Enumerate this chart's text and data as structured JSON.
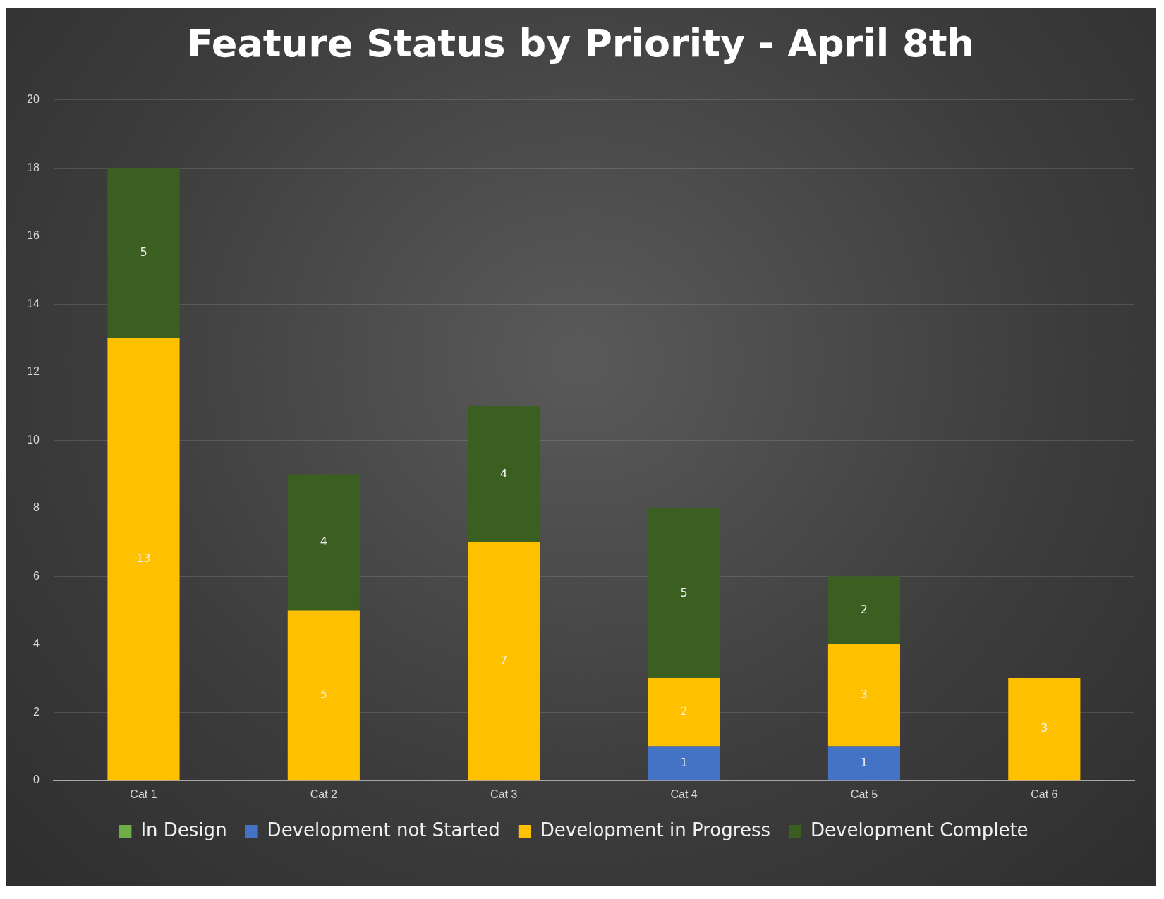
{
  "chart_data": {
    "type": "bar",
    "title": "Feature Status by Priority - April 8th",
    "categories": [
      "Cat 1",
      "Cat 2",
      "Cat 3",
      "Cat 4",
      "Cat 5",
      "Cat 6"
    ],
    "series": [
      {
        "name": "In Design",
        "color": "#70ad47",
        "values": [
          null,
          null,
          null,
          null,
          null,
          null
        ]
      },
      {
        "name": "Development not Started",
        "color": "#4472c4",
        "values": [
          null,
          null,
          null,
          1,
          1,
          null
        ]
      },
      {
        "name": "Development in Progress",
        "color": "#ffc000",
        "values": [
          13,
          5,
          7,
          2,
          3,
          3
        ]
      },
      {
        "name": "Development Complete",
        "color": "#3b5e21",
        "values": [
          5,
          4,
          4,
          5,
          2,
          null
        ]
      }
    ],
    "stacked": true,
    "ylim": [
      0,
      20
    ],
    "yticks": [
      0,
      2,
      4,
      6,
      8,
      10,
      12,
      14,
      16,
      18,
      20
    ],
    "grid": "y",
    "legend": "bottom",
    "data_labels": true
  }
}
